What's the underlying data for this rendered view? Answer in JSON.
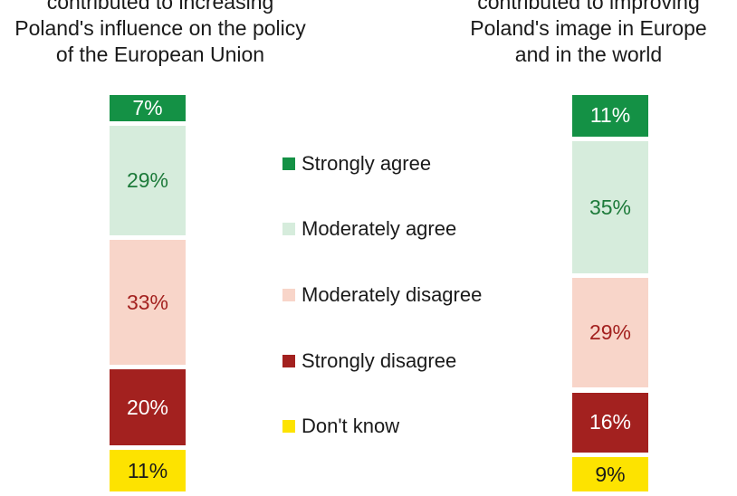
{
  "colors": {
    "strongly_agree": "#149145",
    "moderately_agree": "#d6ecdc",
    "moderately_disagree": "#f8d5c9",
    "strongly_disagree": "#a3211f",
    "dont_know": "#fde300"
  },
  "chart_data": [
    {
      "type": "bar",
      "stacked": true,
      "title": "contributed to increasing\nPoland's influence on the policy\nof the European Union",
      "categories": [
        "Strongly agree",
        "Moderately agree",
        "Moderately disagree",
        "Strongly disagree",
        "Don't know"
      ],
      "values": [
        7,
        29,
        33,
        20,
        11
      ],
      "labels": [
        "7%",
        "29%",
        "33%",
        "20%",
        "11%"
      ]
    },
    {
      "type": "bar",
      "stacked": true,
      "title": "contributed to improving\nPoland's image in Europe\nand in the world",
      "categories": [
        "Strongly agree",
        "Moderately agree",
        "Moderately disagree",
        "Strongly disagree",
        "Don't know"
      ],
      "values": [
        11,
        35,
        29,
        16,
        9
      ],
      "labels": [
        "11%",
        "35%",
        "29%",
        "16%",
        "9%"
      ]
    }
  ],
  "legend": [
    {
      "label": "Strongly agree",
      "color_key": "strongly_agree"
    },
    {
      "label": "Moderately agree",
      "color_key": "moderately_agree"
    },
    {
      "label": "Moderately disagree",
      "color_key": "moderately_disagree"
    },
    {
      "label": "Strongly disagree",
      "color_key": "strongly_disagree"
    },
    {
      "label": "Don't know",
      "color_key": "dont_know"
    }
  ]
}
